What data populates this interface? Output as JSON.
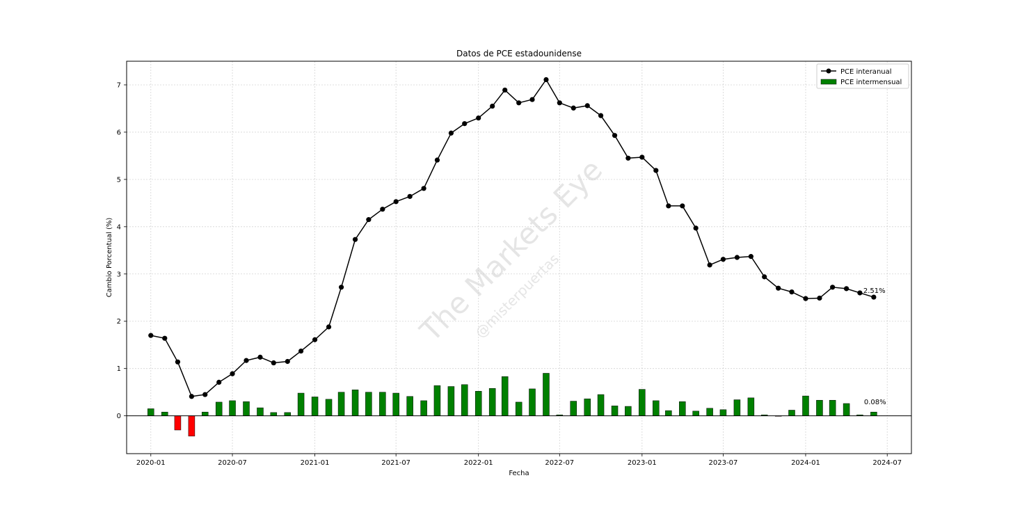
{
  "chart_data": {
    "type": "line",
    "title": "Datos de PCE estadounidense",
    "xlabel": "Fecha",
    "ylabel": "Cambio Porcentual (%)",
    "ylim": [
      -0.8,
      7.5
    ],
    "yticks": [
      0,
      1,
      2,
      3,
      4,
      5,
      6,
      7
    ],
    "xlim": [
      "2019-11-08",
      "2024-08-24"
    ],
    "xticks": [
      "2020-01",
      "2020-07",
      "2021-01",
      "2021-07",
      "2022-01",
      "2022-07",
      "2023-01",
      "2023-07",
      "2024-01",
      "2024-07"
    ],
    "grid": true,
    "legend_position": "top-right",
    "watermark": [
      "The Markets Eye",
      "@misterpuertas"
    ],
    "dates": [
      "2020-01",
      "2020-02",
      "2020-03",
      "2020-04",
      "2020-05",
      "2020-06",
      "2020-07",
      "2020-08",
      "2020-09",
      "2020-10",
      "2020-11",
      "2020-12",
      "2021-01",
      "2021-02",
      "2021-03",
      "2021-04",
      "2021-05",
      "2021-06",
      "2021-07",
      "2021-08",
      "2021-09",
      "2021-10",
      "2021-11",
      "2021-12",
      "2022-01",
      "2022-02",
      "2022-03",
      "2022-04",
      "2022-05",
      "2022-06",
      "2022-07",
      "2022-08",
      "2022-09",
      "2022-10",
      "2022-11",
      "2022-12",
      "2023-01",
      "2023-02",
      "2023-03",
      "2023-04",
      "2023-05",
      "2023-06",
      "2023-07",
      "2023-08",
      "2023-09",
      "2023-10",
      "2023-11",
      "2023-12",
      "2024-01",
      "2024-02",
      "2024-03",
      "2024-04",
      "2024-05",
      "2024-06"
    ],
    "series": [
      {
        "name": "PCE interanual",
        "kind": "line",
        "color": "#000000",
        "values": [
          1.7,
          1.64,
          1.14,
          0.41,
          0.45,
          0.71,
          0.89,
          1.17,
          1.24,
          1.12,
          1.15,
          1.37,
          1.61,
          1.88,
          2.72,
          3.73,
          4.15,
          4.37,
          4.53,
          4.64,
          4.81,
          5.41,
          5.98,
          6.18,
          6.3,
          6.55,
          6.89,
          6.62,
          6.69,
          7.11,
          6.62,
          6.51,
          6.56,
          6.35,
          5.93,
          5.45,
          5.47,
          5.19,
          4.44,
          4.44,
          3.97,
          3.19,
          3.31,
          3.35,
          3.37,
          2.94,
          2.7,
          2.62,
          2.48,
          2.49,
          2.72,
          2.69,
          2.6,
          2.51
        ]
      },
      {
        "name": "PCE intermensual",
        "kind": "bar",
        "color": "#008000",
        "negative_color": "#ff0000",
        "values": [
          0.15,
          0.08,
          -0.3,
          -0.43,
          0.08,
          0.29,
          0.32,
          0.3,
          0.17,
          0.07,
          0.07,
          0.48,
          0.4,
          0.35,
          0.5,
          0.55,
          0.5,
          0.5,
          0.48,
          0.41,
          0.32,
          0.64,
          0.62,
          0.66,
          0.52,
          0.58,
          0.83,
          0.29,
          0.57,
          0.9,
          0.02,
          0.31,
          0.36,
          0.45,
          0.21,
          0.2,
          0.56,
          0.32,
          0.11,
          0.3,
          0.1,
          0.16,
          0.13,
          0.34,
          0.38,
          0.02,
          -0.01,
          0.12,
          0.42,
          0.33,
          0.33,
          0.26,
          0.02,
          0.08
        ]
      }
    ],
    "annotations": [
      {
        "text": "2.51%",
        "series": 0,
        "date": "2024-06"
      },
      {
        "text": "0.08%",
        "series": 1,
        "date": "2024-06"
      }
    ]
  }
}
